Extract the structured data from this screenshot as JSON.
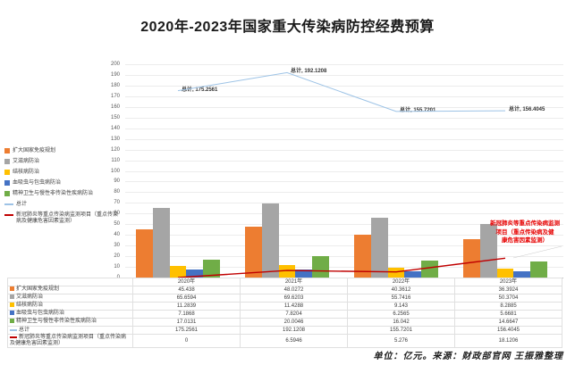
{
  "title": "2020年-2023年国家重大传染病防控经费预算",
  "caption": "单位：亿元。来源：财政部官网 王振雅整理",
  "annotation": {
    "text": "新冠肺炎等重点传染病监测\n项目（重点传染病及健\n康危害因素监测）",
    "color": "#e60000"
  },
  "chart_data": {
    "type": "bar",
    "title": "2020年-2023年国家重大传染病防控经费预算",
    "categories": [
      "2020年",
      "2021年",
      "2022年",
      "2023年"
    ],
    "series": [
      {
        "name": "扩大国家免疫规划",
        "kind": "bar",
        "color": "#ED7D31",
        "values": [
          45.438,
          48.0272,
          40.3612,
          36.3924
        ]
      },
      {
        "name": "艾滋病防治",
        "kind": "bar",
        "color": "#A5A5A5",
        "values": [
          65.6594,
          69.6203,
          55.7416,
          50.3704
        ]
      },
      {
        "name": "结核病防治",
        "kind": "bar",
        "color": "#FFC000",
        "values": [
          11.2839,
          11.4288,
          9.143,
          8.2885
        ]
      },
      {
        "name": "血吸虫与包虫病防治",
        "kind": "bar",
        "color": "#4472C4",
        "values": [
          7.1868,
          7.8204,
          6.2565,
          5.6681
        ]
      },
      {
        "name": "精神卫生与慢性非传染性疾病防治",
        "kind": "bar",
        "color": "#70AD47",
        "values": [
          17.0131,
          20.0046,
          16.042,
          14.6647
        ]
      },
      {
        "name": "总计",
        "kind": "line",
        "color": "#9DC3E6",
        "show_point_labels": true,
        "values": [
          175.2561,
          192.1208,
          155.7201,
          156.4045
        ]
      },
      {
        "name": "新冠肺炎等重点传染病监测项目（重点传染病及健康危害因素监测）",
        "kind": "line",
        "color": "#C00000",
        "values": [
          0,
          6.5946,
          5.276,
          18.1206
        ]
      }
    ],
    "ylim": [
      0,
      200
    ],
    "ytick_step": 10,
    "grid": true,
    "legend_position": "left",
    "unit": "亿元"
  },
  "table": {
    "header": [
      "",
      "2020年",
      "2021年",
      "2022年",
      "2023年"
    ],
    "rows": [
      {
        "label": "扩大国家免疫规划",
        "values": [
          "45.438",
          "48.0272",
          "40.3612",
          "36.3924"
        ]
      },
      {
        "label": "艾滋病防治",
        "values": [
          "65.6594",
          "69.6203",
          "55.7416",
          "50.3704"
        ]
      },
      {
        "label": "结核病防治",
        "values": [
          "11.2839",
          "11.4288",
          "9.143",
          "8.2885"
        ]
      },
      {
        "label": "血吸虫与包虫病防治",
        "values": [
          "7.1868",
          "7.8204",
          "6.2565",
          "5.6681"
        ]
      },
      {
        "label": "精神卫生与慢性非传染性疾病防治",
        "values": [
          "17.0131",
          "20.0046",
          "16.042",
          "14.6647"
        ]
      },
      {
        "label": "总计",
        "values": [
          "175.2561",
          "192.1208",
          "155.7201",
          "156.4045"
        ]
      },
      {
        "label": "新冠肺炎等重点传染病监测项目（重点传染病及健康危害因素监测）",
        "values": [
          "0",
          "6.5946",
          "5.276",
          "18.1206"
        ]
      }
    ]
  }
}
